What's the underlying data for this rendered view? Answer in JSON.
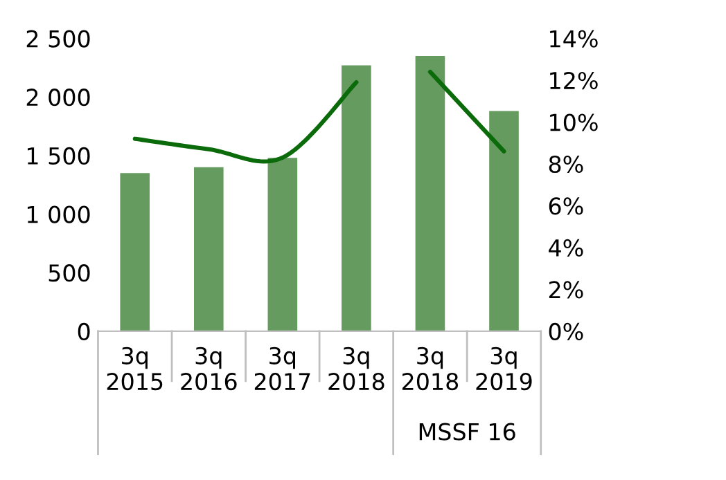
{
  "chart_data": {
    "type": "bar",
    "categories": [
      "3q\n2015",
      "3q\n2016",
      "3q\n2017",
      "3q\n2018",
      "3q\n2018",
      "3q\n2019"
    ],
    "series": [
      {
        "color": "#659b5e",
        "values": [
          1350,
          1400,
          1480,
          2270,
          2350,
          1880
        ]
      },
      {
        "type": "line",
        "axis": "y2",
        "color": "#0b6b0b",
        "values": [
          9.2,
          8.7,
          8.3,
          11.9,
          null,
          null
        ]
      },
      {
        "type": "line",
        "axis": "y2",
        "color": "#0b6b0b",
        "values": [
          null,
          null,
          null,
          null,
          12.4,
          8.6
        ]
      }
    ],
    "ylim": [
      0,
      2500
    ],
    "yticks": [
      0,
      500,
      {
        "value": 1000,
        "label": "1 000"
      },
      {
        "value": 1500,
        "label": "1 500"
      },
      {
        "value": 2000,
        "label": "2 000"
      },
      {
        "value": 2500,
        "label": "2 500"
      }
    ],
    "y2lim": [
      0,
      14
    ],
    "y2ticks": [
      {
        "value": 0,
        "label": "0%"
      },
      {
        "value": 2,
        "label": "2%"
      },
      {
        "value": 4,
        "label": "4%"
      },
      {
        "value": 6,
        "label": "6%"
      },
      {
        "value": 8,
        "label": "8%"
      },
      {
        "value": 10,
        "label": "10%"
      },
      {
        "value": 12,
        "label": "12%"
      },
      {
        "value": 14,
        "label": "14%"
      }
    ],
    "annotations": [
      "MSSF 16"
    ],
    "grid": false,
    "legend": false
  }
}
